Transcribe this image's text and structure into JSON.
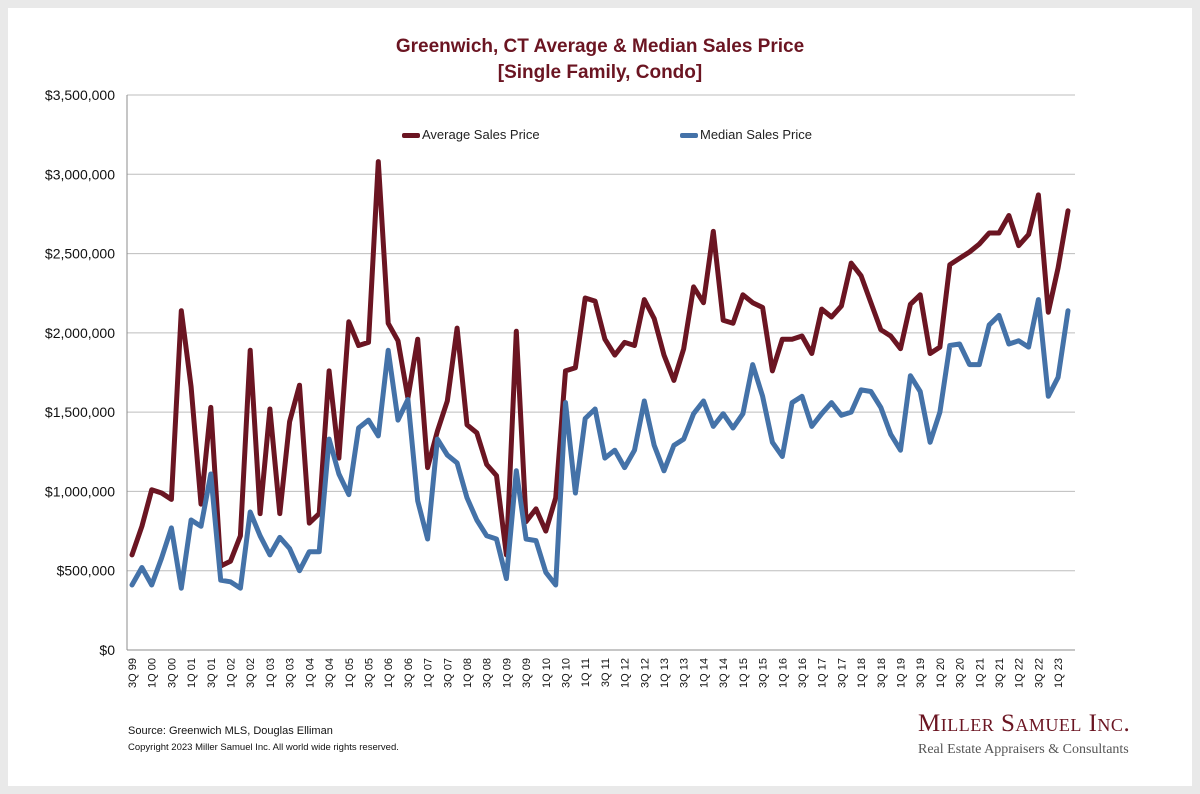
{
  "chart_data": {
    "type": "line",
    "title": "Greenwich, CT Average & Median Sales Price",
    "subtitle": "[Single Family, Condo]",
    "xlabel": "",
    "ylabel": "",
    "ylim": [
      0,
      3500000
    ],
    "y_ticks": [
      0,
      500000,
      1000000,
      1500000,
      2000000,
      2500000,
      3000000,
      3500000
    ],
    "y_tick_labels": [
      "$0",
      "$500,000",
      "$1,000,000",
      "$1,500,000",
      "$2,000,000",
      "$2,500,000",
      "$3,000,000",
      "$3,500,000"
    ],
    "grid": true,
    "legend_position": "top",
    "x_tick_labels": [
      "3Q 99",
      "1Q 00",
      "3Q 00",
      "1Q 01",
      "3Q 01",
      "1Q 02",
      "3Q 02",
      "1Q 03",
      "3Q 03",
      "1Q 04",
      "3Q 04",
      "1Q 05",
      "3Q 05",
      "1Q 06",
      "3Q 06",
      "1Q 07",
      "3Q 07",
      "1Q 08",
      "3Q 08",
      "1Q 09",
      "3Q 09",
      "1Q 10",
      "3Q 10",
      "1Q 11",
      "3Q 11",
      "1Q 12",
      "3Q 12",
      "1Q 13",
      "3Q 13",
      "1Q 14",
      "3Q 14",
      "1Q 15",
      "3Q 15",
      "1Q 16",
      "3Q 16",
      "1Q 17",
      "3Q 17",
      "1Q 18",
      "3Q 18",
      "1Q 19",
      "3Q 19",
      "1Q 20",
      "3Q 20",
      "1Q 21",
      "3Q 21",
      "1Q 22",
      "3Q 22",
      "1Q 23"
    ],
    "series": [
      {
        "name": "Average Sales Price",
        "color": "#6b1522",
        "values": [
          600000,
          780000,
          1010000,
          990000,
          950000,
          2140000,
          1660000,
          920000,
          1530000,
          530000,
          560000,
          720000,
          1890000,
          860000,
          1520000,
          860000,
          1440000,
          1670000,
          800000,
          860000,
          1760000,
          1210000,
          2070000,
          1920000,
          1940000,
          3080000,
          2060000,
          1950000,
          1590000,
          1960000,
          1150000,
          1380000,
          1570000,
          2030000,
          1420000,
          1370000,
          1170000,
          1100000,
          600000,
          2010000,
          810000,
          890000,
          750000,
          960000,
          1760000,
          1780000,
          2220000,
          2200000,
          1960000,
          1860000,
          1940000,
          1920000,
          2210000,
          2090000,
          1860000,
          1700000,
          1900000,
          2290000,
          2190000,
          2640000,
          2080000,
          2060000,
          2240000,
          2190000,
          2160000,
          1760000,
          1960000,
          1960000,
          1980000,
          1870000,
          2150000,
          2100000,
          2170000,
          2440000,
          2360000,
          2190000,
          2020000,
          1980000,
          1900000,
          2180000,
          2240000,
          1870000,
          1910000,
          2430000,
          2470000,
          2510000,
          2560000,
          2630000,
          2630000,
          2740000,
          2550000,
          2620000,
          2870000,
          2130000,
          2410000,
          2770000
        ]
      },
      {
        "name": "Median Sales Price",
        "color": "#4472a8",
        "values": [
          410000,
          520000,
          410000,
          580000,
          770000,
          390000,
          820000,
          780000,
          1110000,
          440000,
          430000,
          390000,
          870000,
          720000,
          600000,
          710000,
          640000,
          500000,
          620000,
          620000,
          1330000,
          1110000,
          980000,
          1400000,
          1450000,
          1350000,
          1890000,
          1450000,
          1580000,
          940000,
          700000,
          1330000,
          1230000,
          1180000,
          960000,
          820000,
          720000,
          700000,
          450000,
          1130000,
          700000,
          690000,
          490000,
          410000,
          1560000,
          990000,
          1460000,
          1520000,
          1210000,
          1260000,
          1150000,
          1260000,
          1570000,
          1290000,
          1130000,
          1290000,
          1330000,
          1490000,
          1570000,
          1410000,
          1490000,
          1400000,
          1490000,
          1800000,
          1600000,
          1310000,
          1220000,
          1560000,
          1600000,
          1410000,
          1490000,
          1560000,
          1480000,
          1500000,
          1640000,
          1630000,
          1530000,
          1360000,
          1260000,
          1730000,
          1630000,
          1310000,
          1500000,
          1920000,
          1930000,
          1800000,
          1800000,
          2050000,
          2110000,
          1930000,
          1950000,
          1910000,
          2210000,
          1600000,
          1720000,
          2140000
        ]
      }
    ]
  },
  "footer": {
    "source": "Source: Greenwich MLS, Douglas Elliman",
    "copyright": "Copyright 2023 Miller Samuel Inc.  All world wide rights reserved."
  },
  "logo": {
    "name": "Miller Samuel Inc.",
    "tagline": "Real Estate Appraisers & Consultants"
  }
}
